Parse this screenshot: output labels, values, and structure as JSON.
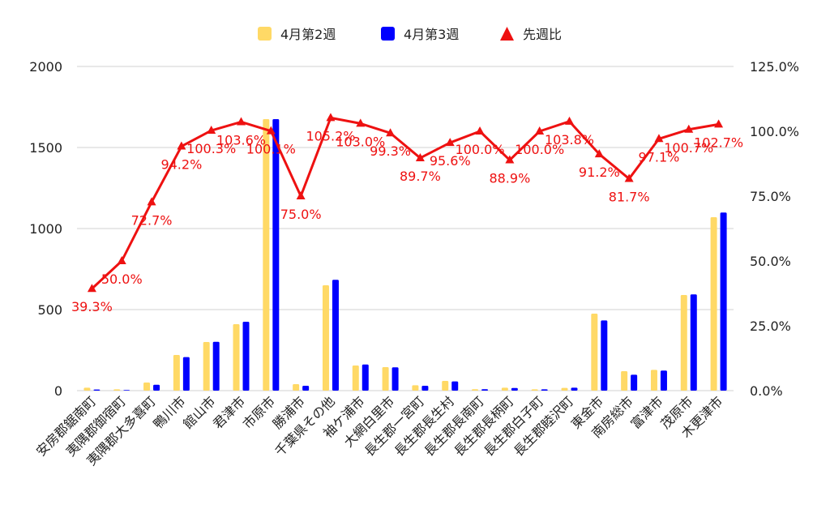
{
  "chart_data": {
    "type": "bar",
    "legend_position": "top",
    "grid": true,
    "categories": [
      "安房郡鋸南町",
      "夷隅郡御宿町",
      "夷隅郡大多喜町",
      "鴨川市",
      "館山市",
      "君津市",
      "市原市",
      "勝浦市",
      "千葉県その他",
      "袖ケ浦市",
      "大網白里市",
      "長生郡一宮町",
      "長生郡長生村",
      "長生郡長南町",
      "長生郡長柄町",
      "長生郡白子町",
      "長生郡睦沢町",
      "東金市",
      "南房総市",
      "富津市",
      "茂原市",
      "木更津市"
    ],
    "series": [
      {
        "name": "4月第2週",
        "type": "bar",
        "axis": "left",
        "color": "#FFD966",
        "values": [
          18,
          8,
          50,
          220,
          300,
          410,
          1675,
          40,
          650,
          155,
          145,
          33,
          60,
          9,
          18,
          8,
          17,
          475,
          120,
          128,
          590,
          1070
        ]
      },
      {
        "name": "4月第3週",
        "type": "bar",
        "axis": "left",
        "color": "#0000FF",
        "values": [
          7,
          4,
          36,
          207,
          301,
          425,
          1675,
          30,
          684,
          161,
          144,
          30,
          57,
          9,
          16,
          8,
          18,
          433,
          98,
          124,
          594,
          1099
        ]
      },
      {
        "name": "先週比",
        "type": "line",
        "axis": "right",
        "color": "#EE1111",
        "values": [
          39.3,
          50.0,
          72.7,
          94.2,
          100.3,
          103.6,
          100.1,
          75.0,
          105.2,
          103.0,
          99.3,
          89.7,
          95.6,
          100.0,
          88.9,
          100.0,
          103.8,
          91.2,
          81.7,
          97.1,
          100.7,
          102.7
        ],
        "labels": [
          "39.3%",
          "50.0%",
          "72.7%",
          "94.2%",
          "100.3%",
          "103.6%",
          "100.1%",
          "75.0%",
          "105.2%",
          "103.0%",
          "99.3%",
          "89.7%",
          "95.6%",
          "100.0%",
          "88.9%",
          "100.0%",
          "103.8%",
          "91.2%",
          "81.7%",
          "97.1%",
          "100.7%",
          "102.7%"
        ]
      }
    ],
    "y_left": {
      "min": 0,
      "max": 2000,
      "ticks": [
        "0",
        "500",
        "1000",
        "1500",
        "2000"
      ]
    },
    "y_right": {
      "min": 0,
      "max": 125,
      "ticks": [
        "0.0%",
        "25.0%",
        "50.0%",
        "75.0%",
        "100.0%",
        "125.0%"
      ]
    }
  }
}
